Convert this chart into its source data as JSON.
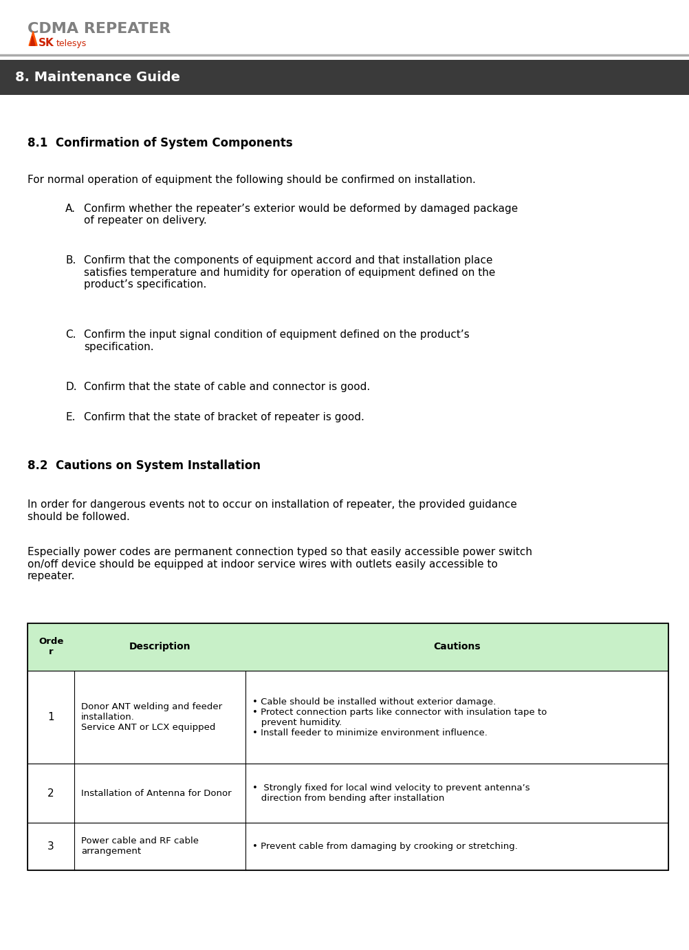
{
  "page_width": 10.02,
  "page_height": 13.81,
  "bg_color": "#ffffff",
  "header_title": "CDMA REPEATER",
  "header_title_color": "#808080",
  "header_line_color": "#aaaaaa",
  "section_bar_color": "#3a3a3a",
  "section_bar_text": "8. Maintenance Guide",
  "section_bar_text_color": "#ffffff",
  "section81_title": "8.1  Confirmation of System Components",
  "section81_intro": "For normal operation of equipment the following should be confirmed on installation.",
  "items_81": [
    [
      "A.",
      "Confirm whether the repeater’s exterior would be deformed by damaged package\nof repeater on delivery."
    ],
    [
      "B.",
      "Confirm that the components of equipment accord and that installation place\nsatisfies temperature and humidity for operation of equipment defined on the\nproduct’s specification."
    ],
    [
      "C.",
      "Confirm the input signal condition of equipment defined on the product’s\nspecification."
    ],
    [
      "D.",
      "Confirm that the state of cable and connector is good."
    ],
    [
      "E.",
      "Confirm that the state of bracket of repeater is good."
    ]
  ],
  "section82_title": "8.2  Cautions on System Installation",
  "section82_para1": "In order for dangerous events not to occur on installation of repeater, the provided guidance\nshould be followed.",
  "section82_para2": "Especially power codes are permanent connection typed so that easily accessible power switch\non/off device should be equipped at indoor service wires with outlets easily accessible to\nrepeater.",
  "table_header_col1": "Orde\nr",
  "table_header_col2": "Description",
  "table_header_col3": "Cautions",
  "table_header_bg": "#c8f0c8",
  "table_border_color": "#000000",
  "table_rows": [
    {
      "order": "1",
      "description": "Donor ANT welding and feeder\ninstallation.\nService ANT or LCX equipped",
      "cautions": "• Cable should be installed without exterior damage.\n• Protect connection parts like connector with insulation tape to\n   prevent humidity.\n• Install feeder to minimize environment influence."
    },
    {
      "order": "2",
      "description": "Installation of Antenna for Donor",
      "cautions": "•  Strongly fixed for local wind velocity to prevent antenna’s\n   direction from bending after installation"
    },
    {
      "order": "3",
      "description": "Power cable and RF cable\narrangement",
      "cautions": "• Prevent cable from damaging by crooking or stretching."
    }
  ]
}
